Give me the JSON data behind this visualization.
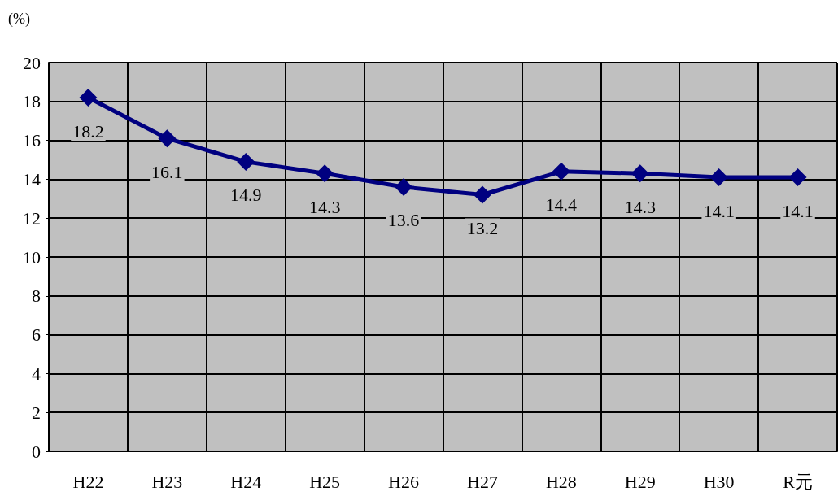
{
  "chart_data": {
    "type": "line",
    "ylabel": "(%)",
    "categories": [
      "H22",
      "H23",
      "H24",
      "H25",
      "H26",
      "H27",
      "H28",
      "H29",
      "H30",
      "R元"
    ],
    "series": [
      {
        "color": "#000080",
        "values": [
          18.2,
          16.1,
          14.9,
          14.3,
          13.6,
          13.2,
          14.4,
          14.3,
          14.1,
          14.1
        ]
      }
    ],
    "ylim": [
      0,
      20
    ],
    "yticks": [
      0,
      2,
      4,
      6,
      8,
      10,
      12,
      14,
      16,
      18,
      20
    ],
    "grid": true,
    "marker": "diamond",
    "line_style": "solid",
    "data_labels": true
  }
}
